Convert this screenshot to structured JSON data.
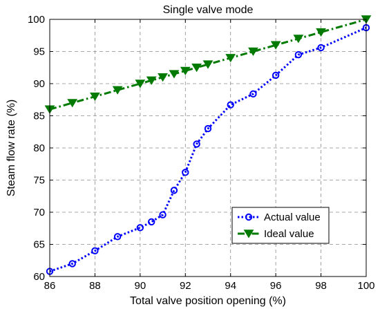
{
  "chart_data": {
    "type": "line",
    "title": "Single valve mode",
    "xlabel": "Total valve position opening (%)",
    "ylabel": "Steam flow rate (%)",
    "xlim": [
      86,
      100
    ],
    "ylim": [
      60,
      100
    ],
    "xticks": [
      86,
      88,
      90,
      92,
      94,
      96,
      98,
      100
    ],
    "yticks": [
      60,
      65,
      70,
      75,
      80,
      85,
      90,
      95,
      100
    ],
    "grid": true,
    "legend_position": "bottom-right",
    "series": [
      {
        "name": "Actual value",
        "color": "#0000ff",
        "line_style": "dotted",
        "marker": "circle",
        "x": [
          86,
          87,
          88,
          89,
          90,
          90.5,
          91,
          91.5,
          92,
          92.5,
          93,
          94,
          95,
          96,
          97,
          98,
          100
        ],
        "y": [
          60.8,
          62.0,
          64.0,
          66.2,
          67.6,
          68.5,
          69.6,
          73.4,
          76.2,
          80.6,
          83.0,
          86.7,
          88.4,
          91.3,
          94.5,
          95.6,
          98.7
        ]
      },
      {
        "name": "Ideal value",
        "color": "#007a00",
        "line_style": "dash-dot",
        "marker": "triangle-down",
        "x": [
          86,
          87,
          88,
          89,
          90,
          90.5,
          91,
          91.5,
          92,
          92.5,
          93,
          94,
          95,
          96,
          97,
          98,
          100
        ],
        "y": [
          86,
          87,
          88,
          89,
          90,
          90.5,
          91,
          91.5,
          92,
          92.5,
          93,
          94,
          95,
          96,
          97,
          98,
          100
        ]
      }
    ]
  }
}
